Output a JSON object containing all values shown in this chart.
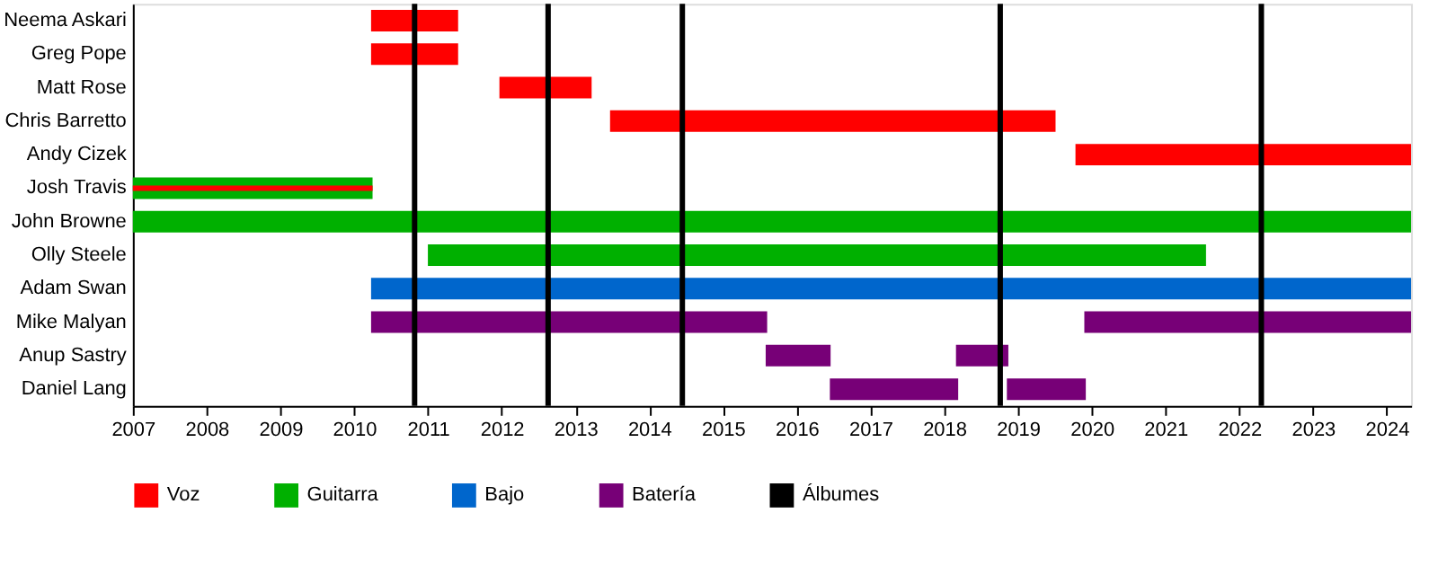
{
  "chart_data": {
    "type": "bar",
    "orientation": "horizontal",
    "categories": [
      "Neema Askari",
      "Greg Pope",
      "Matt Rose",
      "Chris Barretto",
      "Andy Cizek",
      "Josh Travis",
      "John Browne",
      "Olly Steele",
      "Adam Swan",
      "Mike Malyan",
      "Anup Sastry",
      "Daniel Lang"
    ],
    "series": [
      {
        "name": "Voz",
        "color": "#ff0000",
        "base": [
          2010.23,
          2010.23,
          2011.97,
          2013.47,
          2019.78,
          2007,
          null,
          null,
          null,
          null,
          null,
          null
        ],
        "values": [
          1.18,
          1.18,
          1.25,
          6.04,
          4.55,
          3.25,
          null,
          null,
          null,
          null,
          null,
          null
        ]
      },
      {
        "name": "Guitarra",
        "color": "#00b000",
        "base": [
          null,
          null,
          null,
          null,
          null,
          2007,
          2007,
          2011.0,
          null,
          null,
          null,
          null
        ],
        "values": [
          null,
          null,
          null,
          null,
          null,
          3.25,
          17.33,
          10.55,
          null,
          null,
          null,
          null
        ]
      },
      {
        "name": "Bajo",
        "color": "#0066cc",
        "base": [
          null,
          null,
          null,
          null,
          null,
          null,
          null,
          null,
          2010.23,
          null,
          null,
          null
        ],
        "values": [
          null,
          null,
          null,
          null,
          null,
          null,
          null,
          null,
          14.1,
          null,
          null,
          null
        ]
      },
      {
        "name": "Batería",
        "color": "#770077",
        "base": [
          null,
          null,
          null,
          null,
          null,
          null,
          null,
          null,
          null,
          2010.23,
          2015.58,
          2016.45
        ],
        "values": [
          null,
          null,
          null,
          null,
          null,
          null,
          null,
          null,
          null,
          5.37,
          0.88,
          1.74
        ]
      },
      {
        "color": "#770077",
        "base": [
          null,
          null,
          null,
          null,
          null,
          null,
          null,
          null,
          null,
          2019.9,
          2018.16,
          2018.85
        ],
        "values": [
          null,
          null,
          null,
          null,
          null,
          null,
          null,
          null,
          null,
          4.43,
          0.71,
          1.07
        ]
      }
    ],
    "ref_lines": [
      {
        "axis": "x",
        "value": 2010.82,
        "label": "Álbumes",
        "color": "#000000"
      },
      {
        "axis": "x",
        "value": 2012.63,
        "color": "#000000"
      },
      {
        "axis": "x",
        "value": 2014.45,
        "color": "#000000"
      },
      {
        "axis": "x",
        "value": 2018.76,
        "color": "#000000"
      },
      {
        "axis": "x",
        "value": 2022.3,
        "color": "#000000"
      }
    ],
    "xlim": [
      2007,
      2024.33
    ],
    "xticks": [
      2007,
      2008,
      2009,
      2010,
      2011,
      2012,
      2013,
      2014,
      2015,
      2016,
      2017,
      2018,
      2019,
      2020,
      2021,
      2022,
      2023,
      2024
    ],
    "grid": false,
    "legend": "bottom"
  }
}
